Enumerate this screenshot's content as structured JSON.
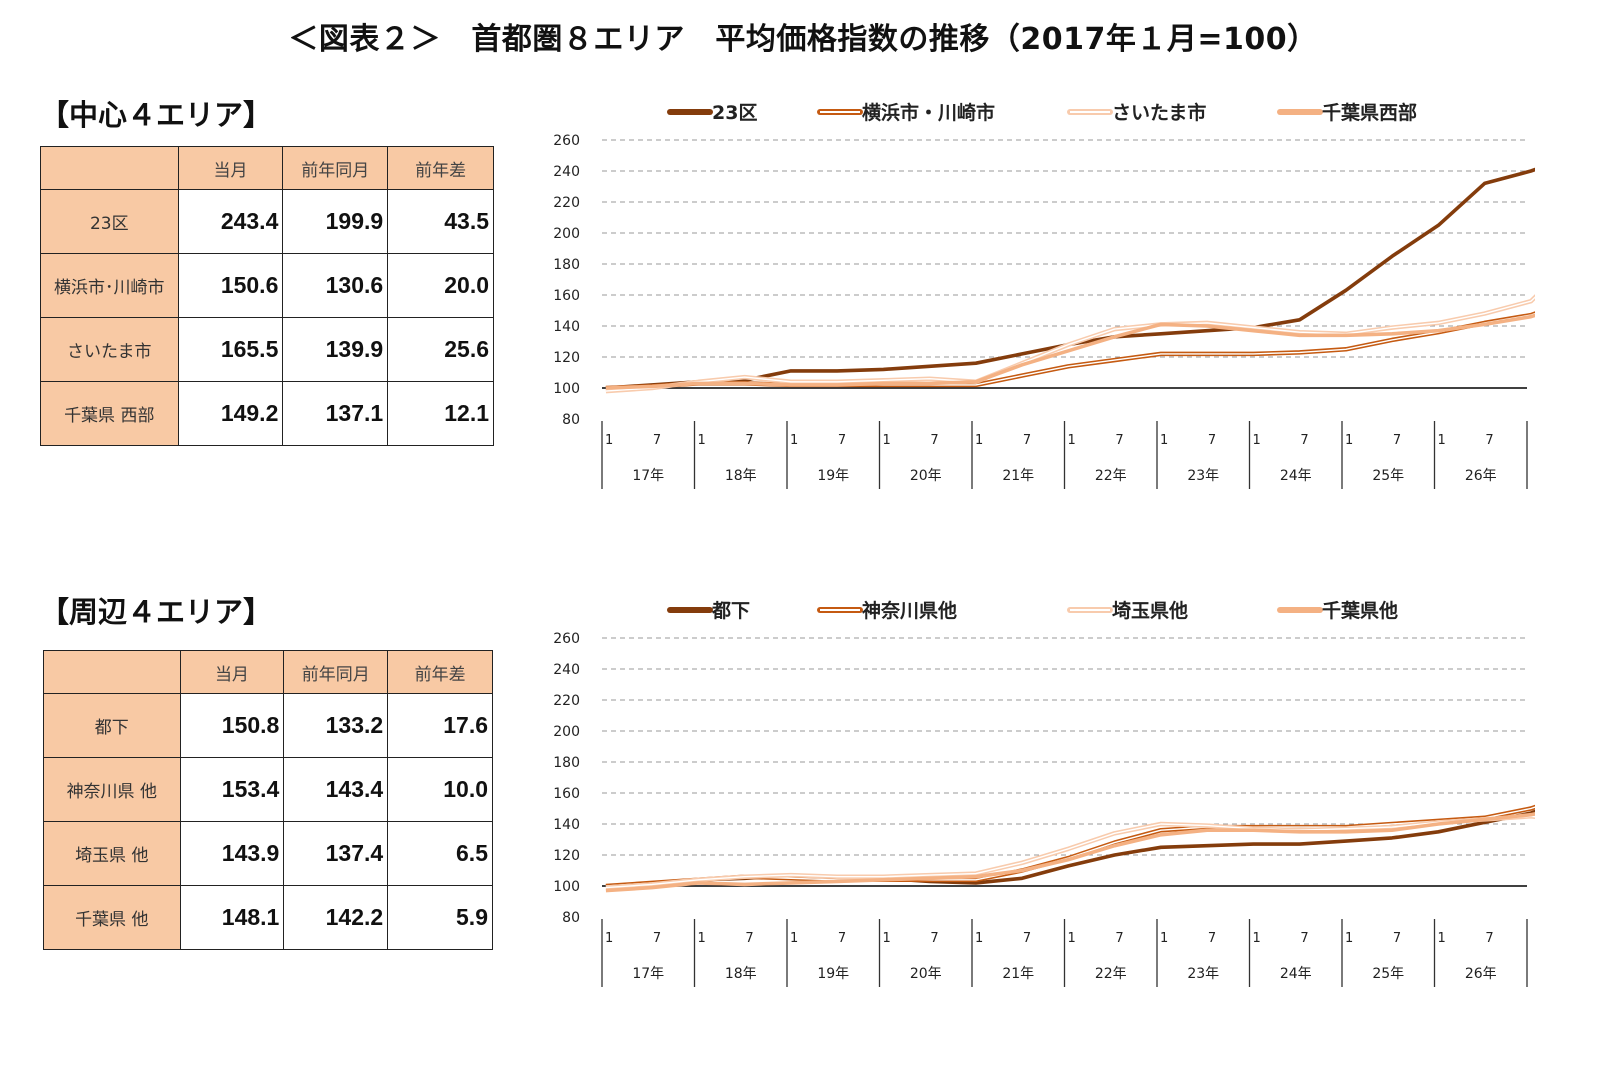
{
  "title": "＜図表２＞　首都圏８エリア　平均価格指数の推移（2017年１月=100）",
  "sections": [
    {
      "heading": "【中心４エリア】",
      "table": {
        "columns": [
          "当月",
          "前年同月",
          "前年差"
        ],
        "rows": [
          {
            "label": "23区",
            "values": [
              "243.4",
              "199.9",
              "43.5"
            ]
          },
          {
            "label": "横浜市･川崎市",
            "values": [
              "150.6",
              "130.6",
              "20.0"
            ]
          },
          {
            "label": "さいたま市",
            "values": [
              "165.5",
              "139.9",
              "25.6"
            ]
          },
          {
            "label": "千葉県 西部",
            "values": [
              "149.2",
              "137.1",
              "12.1"
            ]
          }
        ]
      }
    },
    {
      "heading": "【周辺４エリア】",
      "table": {
        "columns": [
          "当月",
          "前年同月",
          "前年差"
        ],
        "rows": [
          {
            "label": "都下",
            "values": [
              "150.8",
              "133.2",
              "17.6"
            ]
          },
          {
            "label": "神奈川県 他",
            "values": [
              "153.4",
              "143.4",
              "10.0"
            ]
          },
          {
            "label": "埼玉県 他",
            "values": [
              "143.9",
              "137.4",
              "6.5"
            ]
          },
          {
            "label": "千葉県 他",
            "values": [
              "148.1",
              "142.2",
              "5.9"
            ]
          }
        ]
      }
    }
  ],
  "chart_data": [
    {
      "type": "line",
      "title": "",
      "xlabel": "",
      "ylabel": "",
      "ylim": [
        80,
        260
      ],
      "yticks": [
        80,
        100,
        120,
        140,
        160,
        180,
        200,
        220,
        240,
        260
      ],
      "x_month_ticks": [
        "1",
        "7"
      ],
      "x_years": [
        "17年",
        "18年",
        "19年",
        "20年",
        "21年",
        "22年",
        "23年",
        "24年",
        "25年",
        "26年"
      ],
      "x_range": "2017-01 to 2026-08",
      "baseline": 100,
      "grid": true,
      "legend": "top",
      "series": [
        {
          "name": "23区",
          "color": "#843c0c",
          "style": "solid",
          "points": [
            [
              0,
              100
            ],
            [
              6,
              102
            ],
            [
              12,
              104
            ],
            [
              18,
              105
            ],
            [
              24,
              111
            ],
            [
              30,
              111
            ],
            [
              36,
              112
            ],
            [
              42,
              114
            ],
            [
              48,
              116
            ],
            [
              54,
              122
            ],
            [
              60,
              128
            ],
            [
              66,
              133
            ],
            [
              72,
              135
            ],
            [
              78,
              137
            ],
            [
              84,
              139
            ],
            [
              90,
              144
            ],
            [
              96,
              163
            ],
            [
              102,
              185
            ],
            [
              108,
              205
            ],
            [
              114,
              232
            ],
            [
              120,
              240
            ],
            [
              122,
              243.4
            ]
          ]
        },
        {
          "name": "横浜市・川崎市",
          "color": "#c55a11",
          "style": "double",
          "points": [
            [
              0,
              100
            ],
            [
              6,
              101
            ],
            [
              12,
              103
            ],
            [
              18,
              103
            ],
            [
              24,
              102
            ],
            [
              30,
              102
            ],
            [
              36,
              102
            ],
            [
              42,
              102
            ],
            [
              48,
              102
            ],
            [
              54,
              108
            ],
            [
              60,
              114
            ],
            [
              66,
              118
            ],
            [
              72,
              122
            ],
            [
              78,
              122
            ],
            [
              84,
              122
            ],
            [
              90,
              123
            ],
            [
              96,
              125
            ],
            [
              102,
              131
            ],
            [
              108,
              136
            ],
            [
              114,
              142
            ],
            [
              120,
              147
            ],
            [
              122,
              150.6
            ]
          ]
        },
        {
          "name": "さいたま市",
          "color": "#f8cbad",
          "style": "double",
          "points": [
            [
              0,
              98
            ],
            [
              6,
              100
            ],
            [
              12,
              104
            ],
            [
              18,
              107
            ],
            [
              24,
              104
            ],
            [
              30,
              104
            ],
            [
              36,
              105
            ],
            [
              42,
              106
            ],
            [
              48,
              104
            ],
            [
              54,
              116
            ],
            [
              60,
              128
            ],
            [
              66,
              138
            ],
            [
              72,
              141
            ],
            [
              78,
              142
            ],
            [
              84,
              139
            ],
            [
              90,
              136
            ],
            [
              96,
              135
            ],
            [
              102,
              139
            ],
            [
              108,
              142
            ],
            [
              114,
              148
            ],
            [
              120,
              156
            ],
            [
              122,
              165.5
            ]
          ]
        },
        {
          "name": "千葉県西部",
          "color": "#f4b183",
          "style": "solid",
          "points": [
            [
              0,
              100
            ],
            [
              6,
              101
            ],
            [
              12,
              103
            ],
            [
              18,
              103
            ],
            [
              24,
              102
            ],
            [
              30,
              102
            ],
            [
              36,
              103
            ],
            [
              42,
              103
            ],
            [
              48,
              104
            ],
            [
              54,
              115
            ],
            [
              60,
              124
            ],
            [
              66,
              133
            ],
            [
              72,
              141
            ],
            [
              78,
              140
            ],
            [
              84,
              137
            ],
            [
              90,
              134
            ],
            [
              96,
              134
            ],
            [
              102,
              135
            ],
            [
              108,
              137
            ],
            [
              114,
              141
            ],
            [
              120,
              146
            ],
            [
              122,
              149.2
            ]
          ]
        }
      ]
    },
    {
      "type": "line",
      "title": "",
      "xlabel": "",
      "ylabel": "",
      "ylim": [
        80,
        260
      ],
      "yticks": [
        80,
        100,
        120,
        140,
        160,
        180,
        200,
        220,
        240,
        260
      ],
      "x_month_ticks": [
        "1",
        "7"
      ],
      "x_years": [
        "17年",
        "18年",
        "19年",
        "20年",
        "21年",
        "22年",
        "23年",
        "24年",
        "25年",
        "26年"
      ],
      "x_range": "2017-01 to 2026-08",
      "baseline": 100,
      "grid": true,
      "legend": "top",
      "series": [
        {
          "name": "都下",
          "color": "#843c0c",
          "style": "solid",
          "points": [
            [
              0,
              100
            ],
            [
              6,
              101
            ],
            [
              12,
              104
            ],
            [
              18,
              105
            ],
            [
              24,
              107
            ],
            [
              30,
              105
            ],
            [
              36,
              105
            ],
            [
              42,
              103
            ],
            [
              48,
              102
            ],
            [
              54,
              105
            ],
            [
              60,
              113
            ],
            [
              66,
              120
            ],
            [
              72,
              125
            ],
            [
              78,
              126
            ],
            [
              84,
              127
            ],
            [
              90,
              127
            ],
            [
              96,
              129
            ],
            [
              102,
              131
            ],
            [
              108,
              135
            ],
            [
              114,
              141
            ],
            [
              120,
              147
            ],
            [
              122,
              150.8
            ]
          ]
        },
        {
          "name": "神奈川県他",
          "color": "#c55a11",
          "style": "double",
          "points": [
            [
              0,
              100
            ],
            [
              6,
              102
            ],
            [
              12,
              104
            ],
            [
              18,
              106
            ],
            [
              24,
              105
            ],
            [
              30,
              104
            ],
            [
              36,
              104
            ],
            [
              42,
              104
            ],
            [
              48,
              104
            ],
            [
              54,
              110
            ],
            [
              60,
              118
            ],
            [
              66,
              128
            ],
            [
              72,
              136
            ],
            [
              78,
              138
            ],
            [
              84,
              138
            ],
            [
              90,
              138
            ],
            [
              96,
              138
            ],
            [
              102,
              140
            ],
            [
              108,
              142
            ],
            [
              114,
              144
            ],
            [
              120,
              150
            ],
            [
              122,
              153.4
            ]
          ]
        },
        {
          "name": "埼玉県他",
          "color": "#f8cbad",
          "style": "double",
          "points": [
            [
              0,
              99
            ],
            [
              6,
              101
            ],
            [
              12,
              104
            ],
            [
              18,
              106
            ],
            [
              24,
              107
            ],
            [
              30,
              106
            ],
            [
              36,
              106
            ],
            [
              42,
              107
            ],
            [
              48,
              108
            ],
            [
              54,
              115
            ],
            [
              60,
              124
            ],
            [
              66,
              134
            ],
            [
              72,
              140
            ],
            [
              78,
              139
            ],
            [
              84,
              137
            ],
            [
              90,
              136
            ],
            [
              96,
              137
            ],
            [
              102,
              138
            ],
            [
              108,
              141
            ],
            [
              114,
              143
            ],
            [
              120,
              145
            ],
            [
              122,
              143.9
            ]
          ]
        },
        {
          "name": "千葉県他",
          "color": "#f4b183",
          "style": "solid",
          "points": [
            [
              0,
              97
            ],
            [
              6,
              99
            ],
            [
              12,
              102
            ],
            [
              18,
              101
            ],
            [
              24,
              102
            ],
            [
              30,
              103
            ],
            [
              36,
              104
            ],
            [
              42,
              105
            ],
            [
              48,
              106
            ],
            [
              54,
              110
            ],
            [
              60,
              117
            ],
            [
              66,
              126
            ],
            [
              72,
              133
            ],
            [
              78,
              136
            ],
            [
              84,
              136
            ],
            [
              90,
              135
            ],
            [
              96,
              135
            ],
            [
              102,
              136
            ],
            [
              108,
              140
            ],
            [
              114,
              143
            ],
            [
              120,
              146
            ],
            [
              122,
              148.1
            ]
          ]
        }
      ]
    }
  ]
}
